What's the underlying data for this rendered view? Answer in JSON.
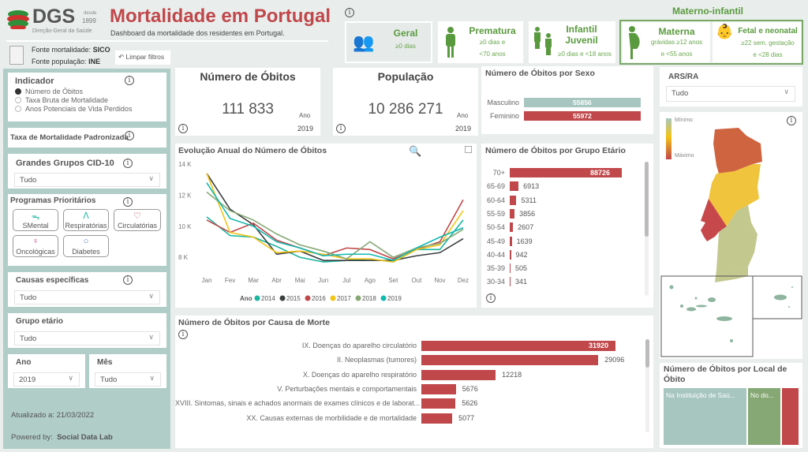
{
  "header": {
    "logo_text": "DGS",
    "logo_since": "desde",
    "logo_year": "1899",
    "logo_sub": "Direção-Geral da Saúde",
    "title": "Mortalidade em Portugal",
    "subtitle": "Dashboard da mortalidade dos residentes em Portugal."
  },
  "sources": {
    "mort_label": "Fonte mortalidade:",
    "mort_value": "SICO",
    "pop_label": "Fonte população:",
    "pop_value": "INE",
    "clear": "Limpar filtros"
  },
  "categories": {
    "group_label": "Materno-infantil",
    "items": [
      {
        "title": "Geral",
        "sub1": "≥0 dias",
        "sub2": ""
      },
      {
        "title": "Prematura",
        "sub1": "≥0 dias e",
        "sub2": "<70 anos"
      },
      {
        "title": "Infantil Juvenil",
        "sub1": "≥0 dias e <18 anos",
        "sub2": ""
      },
      {
        "title": "Materna",
        "sub1": "grávidas ≥12 anos",
        "sub2": "e <55 anos"
      },
      {
        "title": "Fetal e neonatal",
        "sub1": "≥22 sem. gestação",
        "sub2": "e <28 dias"
      }
    ]
  },
  "sidebar": {
    "indicador": {
      "title": "Indicador",
      "options": [
        "Número de Óbitos",
        "Taxa Bruta de Mortalidade",
        "Anos Potenciais de Vida Perdidos"
      ],
      "selected": 0
    },
    "taxa": "Taxa de Mortalidade Padronizada",
    "cid": {
      "title": "Grandes Grupos CID-10",
      "value": "Tudo"
    },
    "programas": {
      "title": "Programas Prioritários",
      "items": [
        "SMental",
        "Respiratórias",
        "Circulatórias",
        "Oncológicas",
        "Diabetes"
      ]
    },
    "causas": {
      "title": "Causas específicas",
      "value": "Tudo"
    },
    "grupo": {
      "title": "Grupo etário",
      "value": "Tudo"
    },
    "ano": {
      "title": "Ano",
      "value": "2019"
    },
    "mes": {
      "title": "Mês",
      "value": "Tudo"
    },
    "updated": "Atualizado a: 21/03/2022",
    "powered_label": "Powered by:",
    "powered_value": "Social Data Lab"
  },
  "kpi": {
    "obitos": {
      "title": "Número de Óbitos",
      "value": "111 833",
      "year_label": "Ano",
      "year": "2019"
    },
    "populacao": {
      "title": "População",
      "value": "10 286 271",
      "year_label": "Ano",
      "year": "2019"
    }
  },
  "ars": {
    "title": "ARS/RA",
    "value": "Tudo"
  },
  "map": {
    "legend_min": "Mínimo",
    "legend_max": "Máximo"
  },
  "local": {
    "title": "Número de Óbitos por Local de Óbito",
    "items": [
      "Na Instituição de Saú...",
      "No do...",
      ""
    ]
  },
  "colors": {
    "red": "#c0474a",
    "teal": "#a7c6bf",
    "green": "#6aa84f"
  },
  "chart_data": [
    {
      "type": "bar",
      "title": "Número de Óbitos por Sexo",
      "categories": [
        "Masculino",
        "Feminino"
      ],
      "values": [
        55856,
        55972
      ]
    },
    {
      "type": "bar",
      "title": "Número de Óbitos por Grupo Etário",
      "categories": [
        "70+",
        "65-69",
        "60-64",
        "55-59",
        "50-54",
        "45-49",
        "40-44",
        "35-39",
        "30-34"
      ],
      "values": [
        88726,
        6913,
        5311,
        3856,
        2607,
        1639,
        942,
        505,
        341
      ]
    },
    {
      "type": "line",
      "title": "Evolução Anual do Número de Óbitos",
      "legend_title": "Ano",
      "categories": [
        "Jan",
        "Fev",
        "Mar",
        "Abr",
        "Mai",
        "Jun",
        "Jul",
        "Ago",
        "Set",
        "Out",
        "Nov",
        "Dez"
      ],
      "yticks": [
        "14 K",
        "12 K",
        "10 K",
        "8 K"
      ],
      "ylim": [
        7000,
        14000
      ],
      "series": [
        {
          "name": "2014",
          "color": "#1bb5a0",
          "values": [
            10600,
            9400,
            9300,
            8700,
            8000,
            7700,
            7800,
            7900,
            7700,
            8500,
            8500,
            10400
          ]
        },
        {
          "name": "2015",
          "color": "#3b3f40",
          "values": [
            13400,
            11100,
            10100,
            8200,
            8400,
            7800,
            7800,
            7800,
            7800,
            8100,
            8300,
            9200
          ]
        },
        {
          "name": "2016",
          "color": "#c0474a",
          "values": [
            10400,
            9600,
            10200,
            9100,
            8600,
            8100,
            8600,
            8500,
            7900,
            8500,
            9000,
            11700
          ]
        },
        {
          "name": "2017",
          "color": "#f2c416",
          "values": [
            13400,
            9600,
            9300,
            8300,
            8400,
            8200,
            7900,
            7900,
            7700,
            8500,
            8800,
            11000
          ]
        },
        {
          "name": "2018",
          "color": "#86a874",
          "values": [
            12200,
            11000,
            10400,
            9500,
            8800,
            8400,
            7900,
            9000,
            8000,
            8600,
            8900,
            9800
          ]
        },
        {
          "name": "2019",
          "color": "#11b9b0",
          "values": [
            12800,
            10500,
            10000,
            9000,
            8600,
            8100,
            8200,
            8200,
            7800,
            8600,
            9300,
            9900
          ]
        }
      ]
    },
    {
      "type": "bar",
      "title": "Número de Óbitos por Causa de Morte",
      "categories": [
        "IX. Doenças do aparelho circulatório",
        "II. Neoplasmas (tumores)",
        "X. Doenças do aparelho respiratório",
        "V. Perturbações mentais e comportamentais",
        "XVIII. Sintomas, sinais e achados anormais de exames clínicos e de laborat...",
        "XX. Causas externas de morbilidade e de mortalidade"
      ],
      "values": [
        31920,
        29096,
        12218,
        5676,
        5626,
        5077
      ]
    }
  ]
}
